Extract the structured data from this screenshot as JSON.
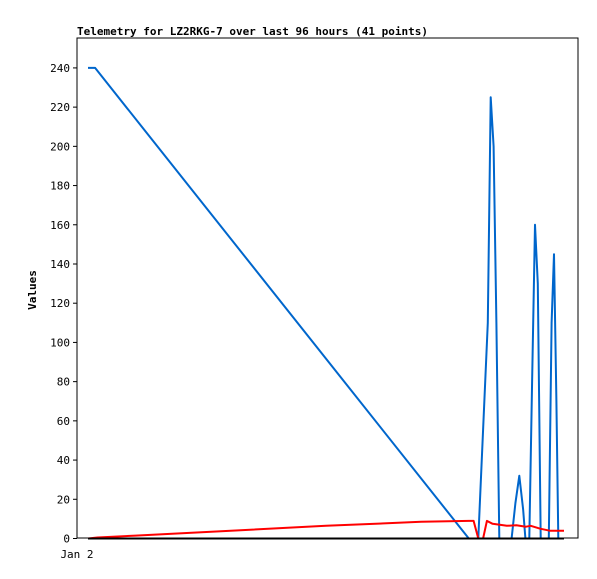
{
  "chart_data": {
    "type": "line",
    "title": "Telemetry for LZ2RKG-7 over last 96 hours (41 points)",
    "ylabel": "Values",
    "xlabel": "",
    "x_tick_labels": [
      "Jan 2"
    ],
    "ylim": [
      0,
      255
    ],
    "y_ticks": [
      0,
      20,
      40,
      60,
      80,
      100,
      120,
      140,
      160,
      180,
      200,
      220,
      240
    ],
    "x_range": [
      0,
      100
    ],
    "grid": false,
    "legend": "none",
    "series": [
      {
        "color": "#0066cc",
        "points": [
          [
            0,
            240
          ],
          [
            1.5,
            240
          ],
          [
            80,
            0
          ],
          [
            82,
            0
          ],
          [
            84,
            110
          ],
          [
            84.6,
            225
          ],
          [
            85.2,
            200
          ],
          [
            85.8,
            110
          ],
          [
            86.4,
            0
          ],
          [
            89,
            0
          ],
          [
            89.8,
            18
          ],
          [
            90.6,
            32
          ],
          [
            91.4,
            15
          ],
          [
            91.9,
            0
          ],
          [
            92.7,
            0
          ],
          [
            93.3,
            80
          ],
          [
            93.9,
            160
          ],
          [
            94.5,
            130
          ],
          [
            95.1,
            0
          ],
          [
            96.8,
            0
          ],
          [
            97.4,
            110
          ],
          [
            97.9,
            145
          ],
          [
            98.4,
            70
          ],
          [
            98.8,
            0
          ],
          [
            99.3,
            0
          ]
        ]
      },
      {
        "color": "#ff0000",
        "points": [
          [
            0,
            0
          ],
          [
            2,
            0.5
          ],
          [
            10,
            1.5
          ],
          [
            30,
            4
          ],
          [
            50,
            6.5
          ],
          [
            70,
            8.5
          ],
          [
            80,
            9
          ],
          [
            81,
            9
          ],
          [
            82,
            0
          ],
          [
            83,
            0
          ],
          [
            83.8,
            9
          ],
          [
            85,
            7.5
          ],
          [
            88,
            6.5
          ],
          [
            90,
            6.8
          ],
          [
            92,
            6
          ],
          [
            93,
            6.5
          ],
          [
            95,
            5
          ],
          [
            97,
            4
          ],
          [
            100,
            4
          ]
        ]
      },
      {
        "color": "#000000",
        "points": [
          [
            0,
            0
          ],
          [
            100,
            0
          ]
        ]
      }
    ]
  }
}
